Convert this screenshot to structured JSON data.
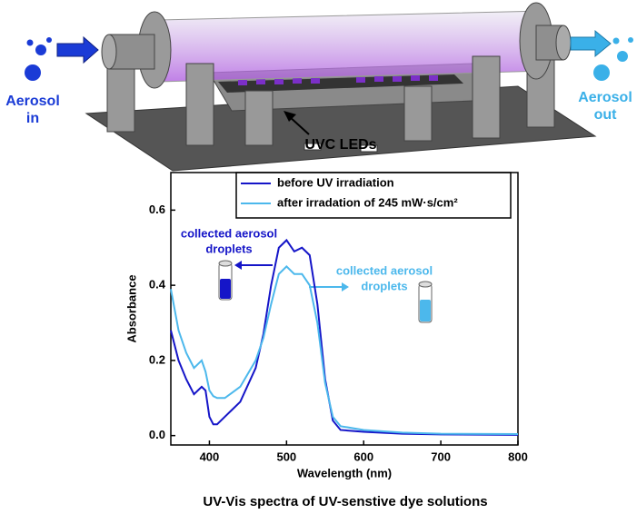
{
  "illustration": {
    "inlet": [
      "Aerosol",
      "in"
    ],
    "outlet": [
      "Aerosol",
      "out"
    ],
    "leds": "UVC LEDs"
  },
  "caption": "UV-Vis spectra of UV-senstive dye solutions",
  "chart_data": {
    "type": "line",
    "xlabel": "Wavelength (nm)",
    "ylabel": "Absorbance",
    "x": [
      350,
      360,
      370,
      380,
      390,
      395,
      400,
      405,
      410,
      420,
      440,
      460,
      470,
      480,
      490,
      500,
      510,
      520,
      530,
      540,
      550,
      560,
      570,
      600,
      650,
      700,
      800
    ],
    "series": [
      {
        "name": "before UV irradiation",
        "color": "#1515c8",
        "values": [
          0.28,
          0.2,
          0.15,
          0.11,
          0.13,
          0.12,
          0.05,
          0.03,
          0.03,
          0.05,
          0.09,
          0.18,
          0.27,
          0.4,
          0.5,
          0.52,
          0.49,
          0.5,
          0.48,
          0.35,
          0.15,
          0.04,
          0.015,
          0.01,
          0.005,
          0.003,
          0.002
        ]
      },
      {
        "name": "after irradation of  245 mW·s/cm²",
        "color": "#4cb8ec",
        "values": [
          0.39,
          0.28,
          0.22,
          0.18,
          0.2,
          0.17,
          0.12,
          0.105,
          0.1,
          0.1,
          0.13,
          0.2,
          0.26,
          0.35,
          0.43,
          0.45,
          0.43,
          0.43,
          0.4,
          0.3,
          0.14,
          0.05,
          0.025,
          0.015,
          0.008,
          0.005,
          0.004
        ]
      }
    ],
    "annotations": [
      {
        "lines": [
          "collected aerosol",
          "droplets"
        ],
        "color": "#1515c8"
      },
      {
        "lines": [
          "collected aerosol",
          "droplets"
        ],
        "color": "#4cb8ec"
      }
    ],
    "xlim": [
      350,
      800
    ],
    "xticks": [
      400,
      500,
      600,
      700,
      800
    ],
    "ylim": [
      -0.025,
      0.7
    ],
    "yticks": [
      {
        "value": 0,
        "label": "0.0"
      },
      0.2,
      0.4,
      0.6
    ]
  }
}
